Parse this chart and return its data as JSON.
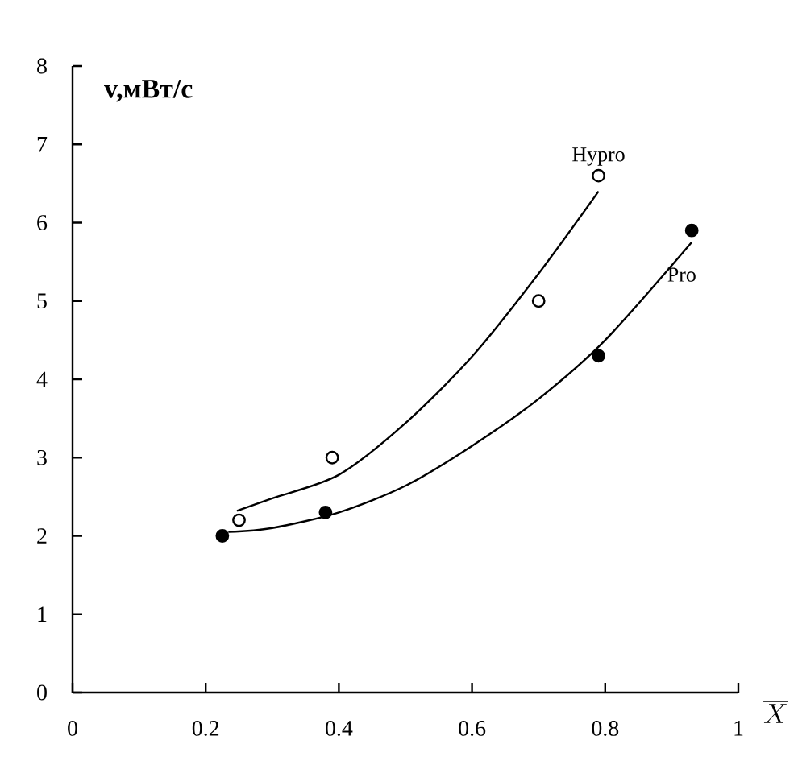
{
  "chart_data": {
    "type": "scatter",
    "ylabel": "v,мВт/с",
    "xlabel": "\\overline{X}",
    "xlim": [
      0,
      1
    ],
    "xticks": [
      0,
      0.2,
      0.4,
      0.6,
      0.8,
      1
    ],
    "ylim": [
      0,
      8
    ],
    "yticks": [
      0,
      1,
      2,
      3,
      4,
      5,
      6,
      7,
      8
    ],
    "series": [
      {
        "name": "Hypro",
        "marker": "circle",
        "color": "#ffffff",
        "x": [
          0.25,
          0.39,
          0.7,
          0.79
        ],
        "values": [
          2.2,
          3.0,
          5.0,
          6.6
        ]
      },
      {
        "name": "Pro",
        "marker": "circle",
        "color": "#000000",
        "x": [
          0.225,
          0.38,
          0.79,
          0.93
        ],
        "values": [
          2.0,
          2.3,
          4.3,
          5.9
        ]
      },
      {
        "type": "line",
        "marker": "none",
        "color": "#000000",
        "x": [
          0.247,
          0.3,
          0.4,
          0.5,
          0.6,
          0.7,
          0.79
        ],
        "values": [
          2.32,
          2.48,
          2.78,
          3.44,
          4.29,
          5.35,
          6.4
        ]
      },
      {
        "type": "line",
        "marker": "none",
        "color": "#000000",
        "x": [
          0.234,
          0.3,
          0.4,
          0.5,
          0.6,
          0.7,
          0.8,
          0.93
        ],
        "values": [
          2.05,
          2.1,
          2.3,
          2.64,
          3.15,
          3.75,
          4.5,
          5.75
        ]
      }
    ]
  }
}
